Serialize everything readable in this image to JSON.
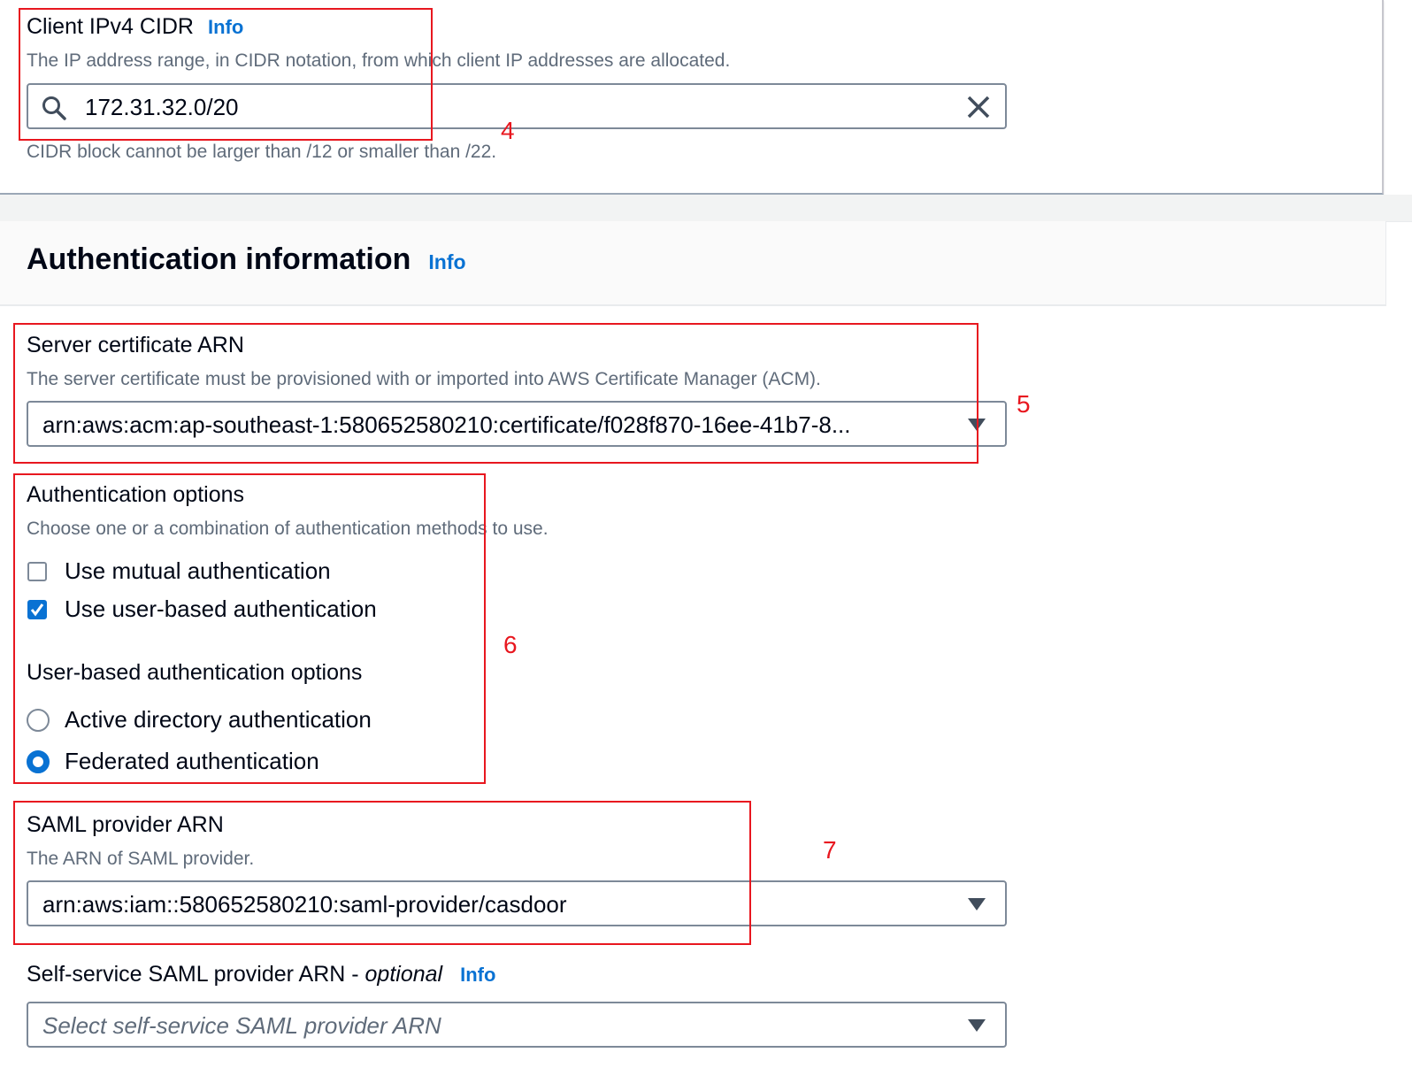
{
  "client_cidr": {
    "label": "Client IPv4 CIDR",
    "info": "Info",
    "description": "The IP address range, in CIDR notation, from which client IP addresses are allocated.",
    "value": "172.31.32.0/20",
    "hint": "CIDR block cannot be larger than /12 or smaller than /22."
  },
  "auth_section": {
    "title": "Authentication information",
    "info": "Info"
  },
  "server_cert": {
    "label": "Server certificate ARN",
    "description": "The server certificate must be provisioned with or imported into AWS Certificate Manager (ACM).",
    "value": "arn:aws:acm:ap-southeast-1:580652580210:certificate/f028f870-16ee-41b7-8..."
  },
  "auth_options": {
    "label": "Authentication options",
    "description": "Choose one or a combination of authentication methods to use.",
    "checkboxes": [
      {
        "label": "Use mutual authentication",
        "checked": false
      },
      {
        "label": "Use user-based authentication",
        "checked": true
      }
    ],
    "user_based_label": "User-based authentication options",
    "radios": [
      {
        "label": "Active directory authentication",
        "selected": false
      },
      {
        "label": "Federated authentication",
        "selected": true
      }
    ]
  },
  "saml_provider": {
    "label": "SAML provider ARN",
    "description": "The ARN of SAML provider.",
    "value": "arn:aws:iam::580652580210:saml-provider/casdoor"
  },
  "self_service_saml": {
    "label": "Self-service SAML provider ARN - ",
    "optional": "optional",
    "info": "Info",
    "placeholder": "Select self-service SAML provider ARN"
  },
  "annotations": [
    "4",
    "5",
    "6",
    "7"
  ],
  "colors": {
    "accent": "#0972d3",
    "annotation": "#e8171f",
    "description": "#5f6b7a"
  }
}
